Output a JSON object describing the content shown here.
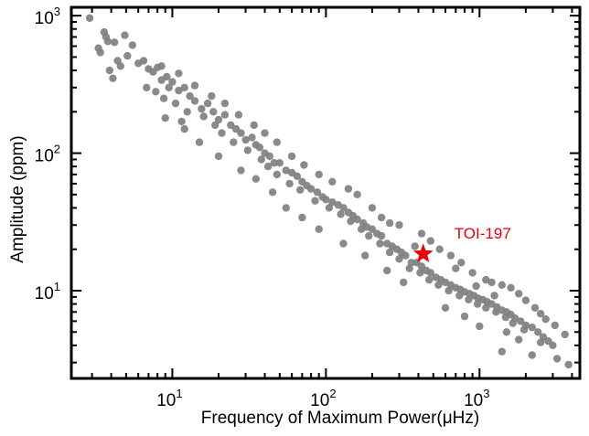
{
  "chart_data": {
    "type": "scatter",
    "xlabel": "Frequency of Maximum Power(μHz)",
    "ylabel": "Amplitude (ppm)",
    "xscale": "log",
    "yscale": "log",
    "xlim": [
      2.2,
      4500
    ],
    "ylim": [
      2.3,
      1150
    ],
    "x_ticks": [
      {
        "value": 10,
        "base": "10",
        "exp": "1"
      },
      {
        "value": 100,
        "base": "10",
        "exp": "2"
      },
      {
        "value": 1000,
        "base": "10",
        "exp": "3"
      }
    ],
    "y_ticks": [
      {
        "value": 10,
        "base": "10",
        "exp": "1"
      },
      {
        "value": 100,
        "base": "10",
        "exp": "2"
      },
      {
        "value": 1000,
        "base": "10",
        "exp": "3"
      }
    ],
    "grid": false,
    "legend": "none",
    "point_color": "#808080",
    "series": [
      {
        "points": [
          [
            2.9,
            960
          ],
          [
            3.4,
            540
          ],
          [
            3.6,
            760
          ],
          [
            4.2,
            640
          ],
          [
            4.9,
            720
          ],
          [
            4.4,
            470
          ],
          [
            3.9,
            400
          ],
          [
            5.5,
            610
          ],
          [
            3.7,
            700
          ],
          [
            3.3,
            580
          ],
          [
            5.1,
            510
          ],
          [
            4.6,
            430
          ],
          [
            4.1,
            350
          ],
          [
            3.8,
            650
          ],
          [
            6.0,
            450
          ],
          [
            6.5,
            470
          ],
          [
            7.0,
            410
          ],
          [
            7.5,
            390
          ],
          [
            8.0,
            420
          ],
          [
            8.5,
            340
          ],
          [
            9.2,
            360
          ],
          [
            10.0,
            330
          ],
          [
            6.8,
            300
          ],
          [
            7.8,
            280
          ],
          [
            9.5,
            300
          ],
          [
            11.0,
            285
          ],
          [
            12.0,
            300
          ],
          [
            8.8,
            250
          ],
          [
            10.5,
            230
          ],
          [
            13.0,
            260
          ],
          [
            14.0,
            240
          ],
          [
            15.5,
            210
          ],
          [
            17.0,
            230
          ],
          [
            12.5,
            200
          ],
          [
            11.5,
            170
          ],
          [
            16.0,
            185
          ],
          [
            18.5,
            200
          ],
          [
            20.0,
            175
          ],
          [
            22.0,
            190
          ],
          [
            19.0,
            160
          ],
          [
            24.0,
            160
          ],
          [
            26.0,
            150
          ],
          [
            21.0,
            140
          ],
          [
            28.0,
            140
          ],
          [
            30.0,
            125
          ],
          [
            25.0,
            120
          ],
          [
            33.0,
            130
          ],
          [
            35.0,
            115
          ],
          [
            31.0,
            105
          ],
          [
            37.0,
            110
          ],
          [
            40.0,
            100
          ],
          [
            38.0,
            90
          ],
          [
            43.0,
            95
          ],
          [
            46.0,
            85
          ],
          [
            42.0,
            80
          ],
          [
            50.0,
            85
          ],
          [
            55.0,
            75
          ],
          [
            48.0,
            70
          ],
          [
            60.0,
            72
          ],
          [
            65.0,
            68
          ],
          [
            58.0,
            60
          ],
          [
            70.0,
            62
          ],
          [
            75.0,
            58
          ],
          [
            68.0,
            54
          ],
          [
            80.0,
            55
          ],
          [
            88.0,
            52
          ],
          [
            95.0,
            48
          ],
          [
            85.0,
            45
          ],
          [
            100.0,
            46
          ],
          [
            110.0,
            44
          ],
          [
            105.0,
            40
          ],
          [
            120.0,
            42
          ],
          [
            130.0,
            40
          ],
          [
            125.0,
            36
          ],
          [
            140.0,
            37
          ],
          [
            150.0,
            35
          ],
          [
            145.0,
            32
          ],
          [
            160.0,
            33
          ],
          [
            175.0,
            31
          ],
          [
            170.0,
            28
          ],
          [
            185.0,
            29
          ],
          [
            200.0,
            28
          ],
          [
            190.0,
            25
          ],
          [
            215.0,
            26
          ],
          [
            230.0,
            25
          ],
          [
            225.0,
            22
          ],
          [
            250.0,
            22
          ],
          [
            270.0,
            21
          ],
          [
            260.0,
            19
          ],
          [
            290.0,
            20
          ],
          [
            310.0,
            19
          ],
          [
            300.0,
            17
          ],
          [
            330.0,
            18
          ],
          [
            360.0,
            16
          ],
          [
            350.0,
            14.5
          ],
          [
            390.0,
            16
          ],
          [
            420.0,
            15
          ],
          [
            410.0,
            13.5
          ],
          [
            450.0,
            14
          ],
          [
            480.0,
            13.5
          ],
          [
            470.0,
            12
          ],
          [
            520.0,
            12.5
          ],
          [
            560.0,
            12
          ],
          [
            540.0,
            11
          ],
          [
            600.0,
            11.5
          ],
          [
            650.0,
            11
          ],
          [
            630.0,
            10
          ],
          [
            700.0,
            10.5
          ],
          [
            750.0,
            10.2
          ],
          [
            740.0,
            9.2
          ],
          [
            800.0,
            9.8
          ],
          [
            860.0,
            9.5
          ],
          [
            850.0,
            8.6
          ],
          [
            920.0,
            9.2
          ],
          [
            980.0,
            8.8
          ],
          [
            970.0,
            8.0
          ],
          [
            1050.0,
            8.6
          ],
          [
            1120.0,
            8.3
          ],
          [
            1100.0,
            7.5
          ],
          [
            1200.0,
            8.0
          ],
          [
            1300.0,
            7.6
          ],
          [
            1280.0,
            7.0
          ],
          [
            1400.0,
            7.2
          ],
          [
            1500.0,
            7.0
          ],
          [
            1480.0,
            6.4
          ],
          [
            1600.0,
            6.7
          ],
          [
            1700.0,
            6.3
          ],
          [
            1650.0,
            5.8
          ],
          [
            1850.0,
            6.0
          ],
          [
            2000.0,
            5.6
          ],
          [
            1950.0,
            5.2
          ],
          [
            2200.0,
            5.4
          ],
          [
            2400.0,
            5.0
          ],
          [
            2600.0,
            4.6
          ],
          [
            2800.0,
            4.3
          ],
          [
            3000.0,
            4.0
          ],
          [
            3600.0,
            4.8
          ],
          [
            3800.0,
            2.9
          ],
          [
            3200.0,
            3.2
          ],
          [
            1400.0,
            3.6
          ],
          [
            2200.0,
            3.4
          ],
          [
            1200.0,
            11.5
          ],
          [
            900.0,
            13.5
          ],
          [
            700.0,
            14.5
          ],
          [
            1600.0,
            10.5
          ],
          [
            2000.0,
            8.5
          ],
          [
            550.0,
            20.0
          ],
          [
            480.0,
            23.0
          ],
          [
            420.0,
            26.0
          ],
          [
            380.0,
            21.0
          ],
          [
            260.0,
            31.0
          ],
          [
            200.0,
            40.0
          ],
          [
            160.0,
            50.0
          ],
          [
            140.0,
            55.0
          ],
          [
            110.0,
            62.0
          ],
          [
            90.0,
            70.0
          ],
          [
            72.0,
            82.0
          ],
          [
            60.0,
            95.0
          ],
          [
            48.0,
            120.0
          ],
          [
            40.0,
            140.0
          ],
          [
            34.0,
            160.0
          ],
          [
            27.0,
            190.0
          ],
          [
            22.0,
            230.0
          ],
          [
            18.0,
            260.0
          ],
          [
            14.0,
            310.0
          ],
          [
            11.0,
            380.0
          ],
          [
            8.5,
            430.0
          ],
          [
            180.0,
            18.0
          ],
          [
            130.0,
            22.0
          ],
          [
            90.0,
            28.0
          ],
          [
            70.0,
            34.0
          ],
          [
            55.0,
            40.0
          ],
          [
            45.0,
            52.0
          ],
          [
            35.0,
            65.0
          ],
          [
            28.0,
            75.0
          ],
          [
            20.0,
            95.0
          ],
          [
            15.0,
            120.0
          ],
          [
            12.0,
            150.0
          ],
          [
            9.0,
            180.0
          ],
          [
            250.0,
            14.0
          ],
          [
            320.0,
            11.5
          ],
          [
            230.0,
            34.0
          ],
          [
            300.0,
            30.0
          ],
          [
            600.0,
            7.5
          ],
          [
            800.0,
            6.5
          ],
          [
            1000.0,
            5.5
          ],
          [
            1500.0,
            5.0
          ],
          [
            1800.0,
            4.4
          ],
          [
            2500.0,
            4.2
          ],
          [
            760.0,
            16.0
          ],
          [
            650.0,
            18.0
          ],
          [
            1100.0,
            12.0
          ],
          [
            1400.0,
            11.0
          ],
          [
            1800.0,
            9.5
          ],
          [
            2300.0,
            7.5
          ],
          [
            2700.0,
            6.2
          ],
          [
            3100.0,
            5.6
          ],
          [
            2500.0,
            6.8
          ],
          [
            1250.0,
            9.2
          ],
          [
            950.0,
            10.8
          ]
        ]
      }
    ],
    "annotation": {
      "label": "TOI-197",
      "x": 430,
      "y": 18.5,
      "color": "#e8000b",
      "marker": "star"
    }
  }
}
